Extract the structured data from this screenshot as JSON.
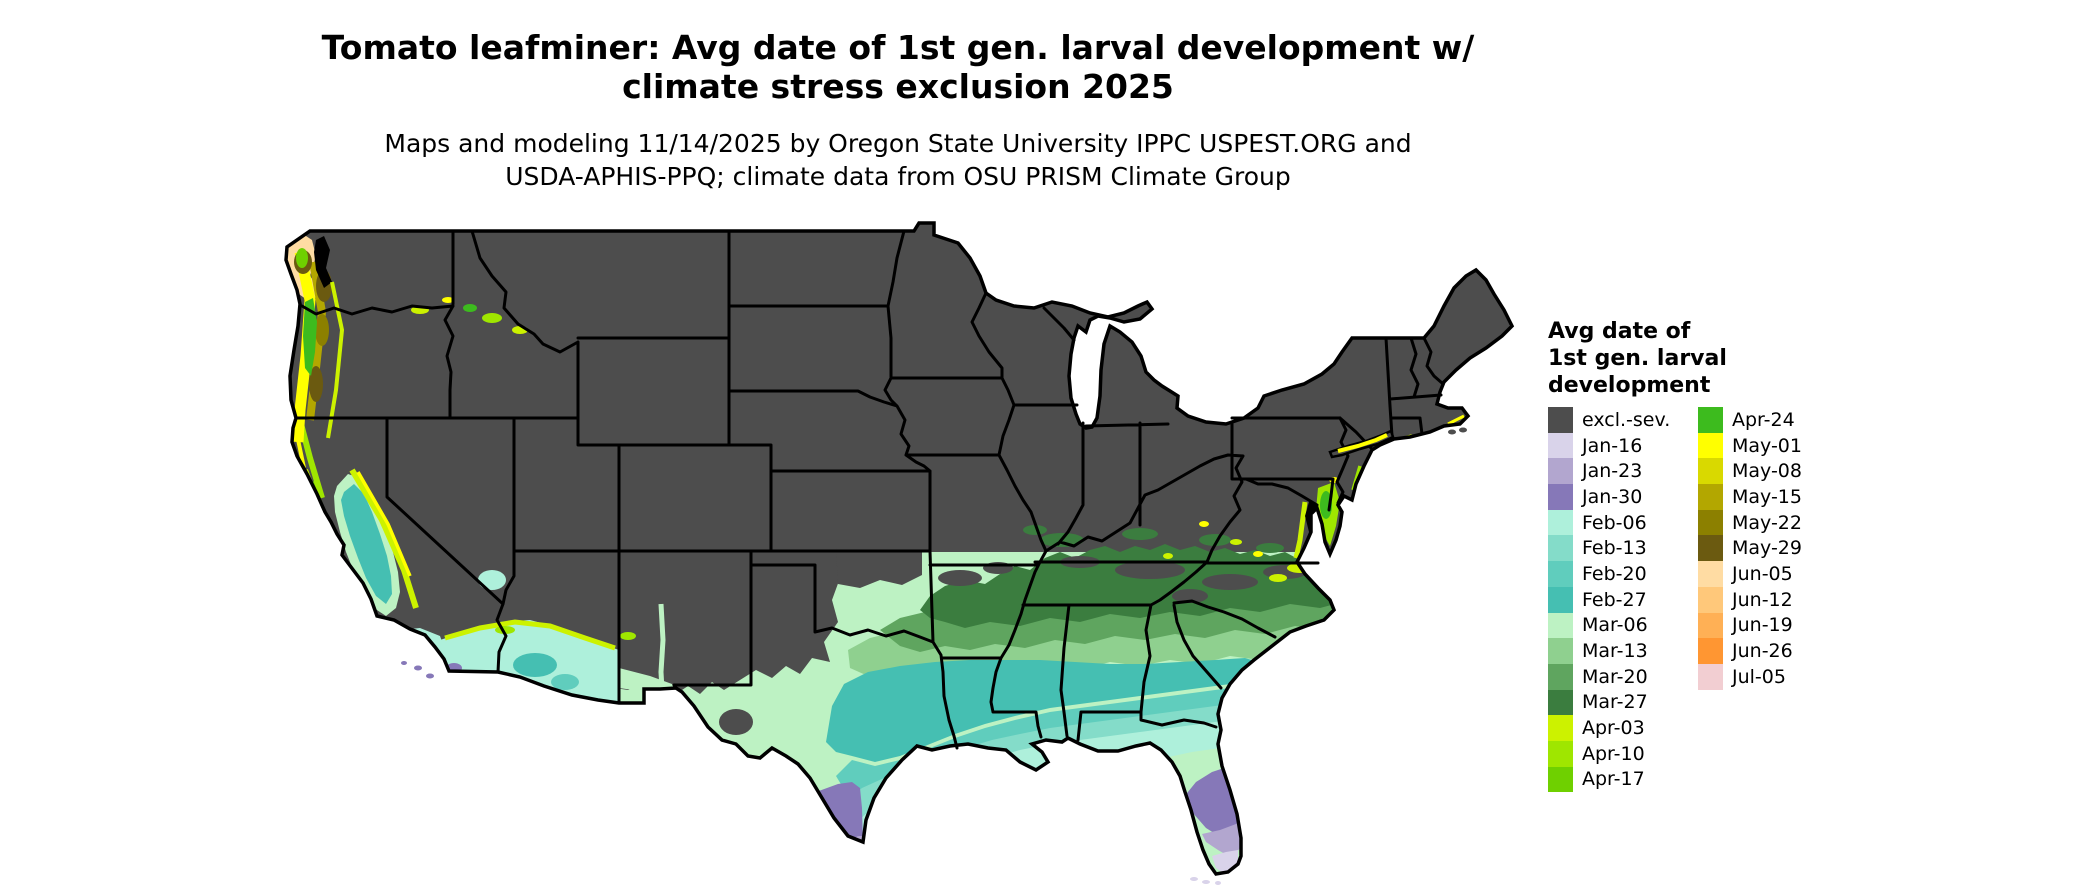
{
  "header": {
    "title_line1": "Tomato leafminer: Avg date of 1st gen. larval development w/",
    "title_line2": "climate stress exclusion 2025",
    "subtitle_line1": "Maps and modeling 11/14/2025 by Oregon State University IPPC USPEST.ORG and",
    "subtitle_line2": "USDA-APHIS-PPQ; climate data from OSU PRISM Climate Group"
  },
  "legend": {
    "title_line1": "Avg date of",
    "title_line2": "1st gen. larval",
    "title_line3": "development",
    "columns": [
      {
        "entries": [
          {
            "label": "excl.-sev.",
            "color": "#4D4D4D"
          },
          {
            "label": "Jan-16",
            "color": "#D9D3EA"
          },
          {
            "label": "Jan-23",
            "color": "#B2A6CF"
          },
          {
            "label": "Jan-30",
            "color": "#8678B8"
          },
          {
            "label": "Feb-06",
            "color": "#AEF0DB"
          },
          {
            "label": "Feb-13",
            "color": "#84DCC9"
          },
          {
            "label": "Feb-20",
            "color": "#60CDBD"
          },
          {
            "label": "Feb-27",
            "color": "#45BFB2"
          },
          {
            "label": "Mar-06",
            "color": "#BDF2C3"
          },
          {
            "label": "Mar-13",
            "color": "#8FD08F"
          },
          {
            "label": "Mar-20",
            "color": "#5FA55F"
          },
          {
            "label": "Mar-27",
            "color": "#3B7D3F"
          },
          {
            "label": "Apr-03",
            "color": "#CCF200"
          },
          {
            "label": "Apr-10",
            "color": "#9FE600"
          },
          {
            "label": "Apr-17",
            "color": "#6FD000"
          }
        ]
      },
      {
        "entries": [
          {
            "label": "Apr-24",
            "color": "#3DBB1E"
          },
          {
            "label": "May-01",
            "color": "#FFFF00"
          },
          {
            "label": "May-08",
            "color": "#D9D900"
          },
          {
            "label": "May-15",
            "color": "#B3A700"
          },
          {
            "label": "May-22",
            "color": "#8C8000"
          },
          {
            "label": "May-29",
            "color": "#6B5A10"
          },
          {
            "label": "Jun-05",
            "color": "#FFDCA3"
          },
          {
            "label": "Jun-12",
            "color": "#FFC87A"
          },
          {
            "label": "Jun-19",
            "color": "#FFB055"
          },
          {
            "label": "Jun-26",
            "color": "#FF9632"
          },
          {
            "label": "Jul-05",
            "color": "#F2CED2"
          }
        ]
      }
    ]
  },
  "map": {
    "type": "us-choropleth",
    "background_color": "#FFFFFF",
    "excluded_land_color": "#4D4D4D",
    "state_border_color": "#000000",
    "description": "Lower-48 US map; interior and northern states excluded (dark gray). Earliest dates (Jan purples) in south Texas, central/south Florida and coastal southern California; Feb teals along Gulf Coast; Mar greens across the mid-South; Apr-May greens/yellows/olives along Pacific coast ranges and Chesapeake; Jun peach tones on the Olympic Peninsula coast."
  }
}
